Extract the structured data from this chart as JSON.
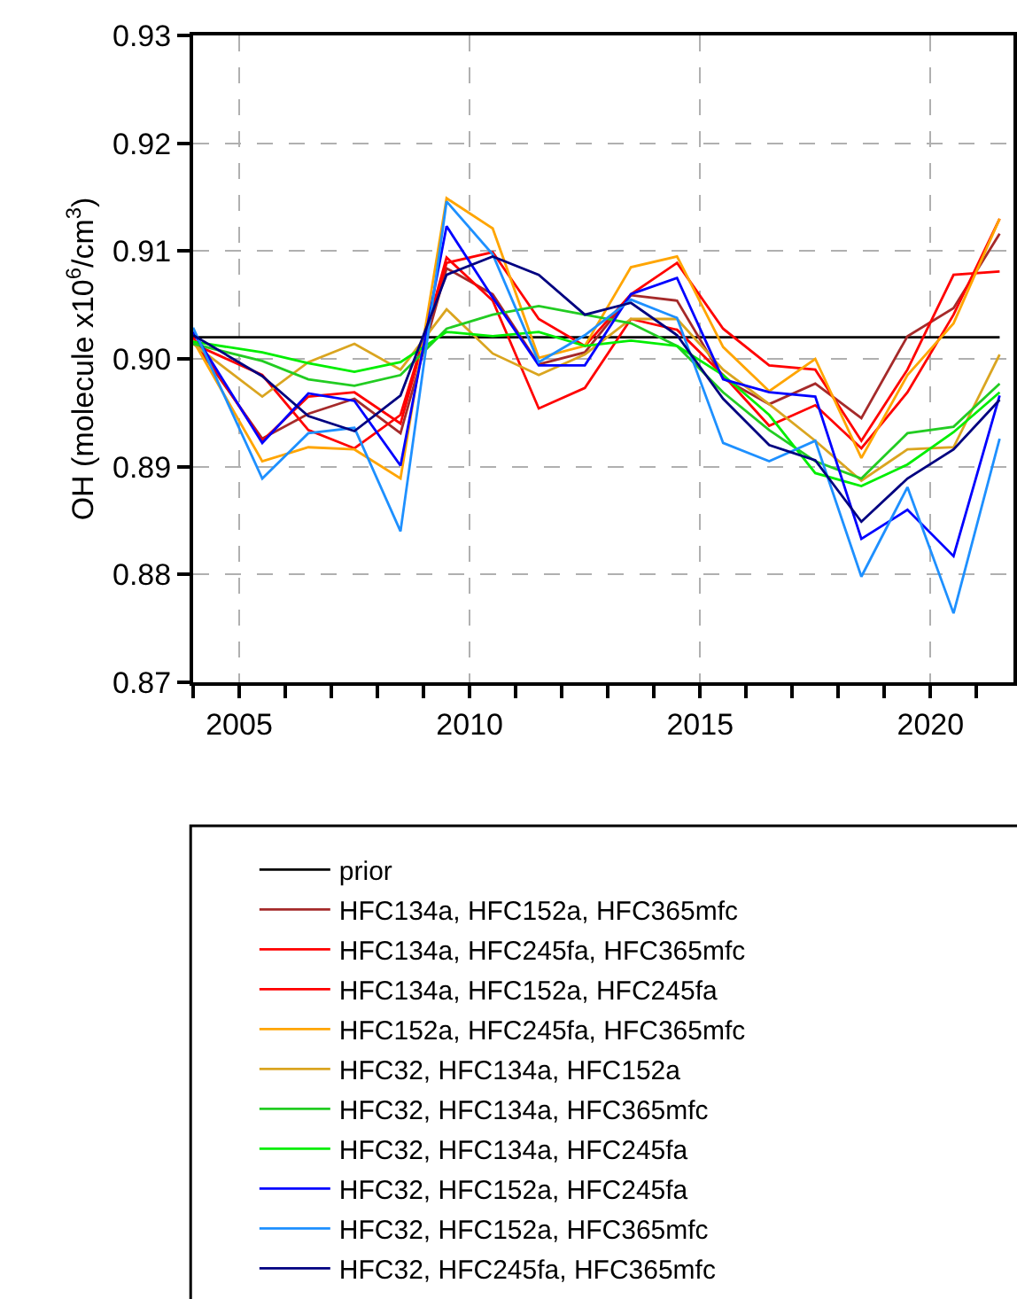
{
  "chart_data": {
    "type": "line",
    "ylabel": "OH (molecule x10$^{6}$/cm$^{3}$)",
    "x": [
      2004,
      2005.5,
      2006.5,
      2007.5,
      2008.5,
      2009.5,
      2010.5,
      2011.5,
      2012.5,
      2013.5,
      2014.5,
      2015.5,
      2016.5,
      2017.5,
      2018.5,
      2019.5,
      2020.5,
      2021.5
    ],
    "xlim": [
      2004,
      2021.8
    ],
    "xticks": [
      {
        "value": 2004,
        "label": null
      },
      2005,
      {
        "value": 2006,
        "label": null
      },
      {
        "value": 2007,
        "label": null
      },
      {
        "value": 2008,
        "label": null
      },
      {
        "value": 2009,
        "label": null
      },
      2010,
      {
        "value": 2011,
        "label": null
      },
      {
        "value": 2012,
        "label": null
      },
      {
        "value": 2013,
        "label": null
      },
      {
        "value": 2014,
        "label": null
      },
      2015,
      {
        "value": 2016,
        "label": null
      },
      {
        "value": 2017,
        "label": null
      },
      {
        "value": 2018,
        "label": null
      },
      {
        "value": 2019,
        "label": null
      },
      2020,
      {
        "value": 2021,
        "label": null
      }
    ],
    "ylim": [
      0.87,
      0.93
    ],
    "yticks": [
      {
        "value": 0.87,
        "label": "0.87"
      },
      {
        "value": 0.88,
        "label": "0.88"
      },
      {
        "value": 0.89,
        "label": "0.89"
      },
      {
        "value": 0.9,
        "label": "0.90"
      },
      {
        "value": 0.91,
        "label": "0.91"
      },
      {
        "value": 0.92,
        "label": "0.92"
      },
      {
        "value": 0.93,
        "label": "0.93"
      }
    ],
    "grid": true,
    "legend": "bottom",
    "marker": "none",
    "line_style": "solid",
    "series": [
      {
        "name": "prior",
        "color": "#000000",
        "values": [
          0.902,
          0.902,
          0.902,
          0.902,
          0.902,
          0.902,
          0.902,
          0.902,
          0.902,
          0.902,
          0.902,
          0.902,
          0.902,
          0.902,
          0.902,
          0.902,
          0.902,
          0.902
        ]
      },
      {
        "name": "HFC134a, HFC152a, HFC365mfc",
        "color": "#a52a2a",
        "values": [
          0.9017,
          0.8926,
          0.8949,
          0.8963,
          0.8931,
          0.9084,
          0.906,
          0.8995,
          0.9006,
          0.9059,
          0.9054,
          0.8982,
          0.8958,
          0.8977,
          0.8945,
          0.9021,
          0.9047,
          0.9116
        ]
      },
      {
        "name": "HFC134a, HFC245fa, HFC365mfc",
        "color": "#ff0000",
        "values": [
          0.9014,
          0.8985,
          0.8934,
          0.8917,
          0.8948,
          0.9089,
          0.9099,
          0.9037,
          0.9012,
          0.906,
          0.9089,
          0.9028,
          0.8994,
          0.899,
          0.8924,
          0.899,
          0.9078,
          0.9081
        ]
      },
      {
        "name": "HFC134a, HFC152a, HFC245fa",
        "color": "#ff0000",
        "values": [
          0.902,
          0.8924,
          0.8965,
          0.8969,
          0.894,
          0.9094,
          0.9054,
          0.8954,
          0.8973,
          0.9037,
          0.9027,
          0.8985,
          0.8938,
          0.8957,
          0.8917,
          0.8969,
          0.9041,
          0.913
        ]
      },
      {
        "name": "HFC152a, HFC245fa, HFC365mfc",
        "color": "#ffa500",
        "values": [
          0.9017,
          0.8905,
          0.8918,
          0.8916,
          0.8889,
          0.9149,
          0.9121,
          0.9001,
          0.9012,
          0.9085,
          0.9095,
          0.9011,
          0.897,
          0.9,
          0.8908,
          0.8985,
          0.9033,
          0.913
        ]
      },
      {
        "name": "HFC32, HFC134a, HFC152a",
        "color": "#daa520",
        "values": [
          0.9014,
          0.8965,
          0.8997,
          0.9014,
          0.899,
          0.9046,
          0.9005,
          0.8985,
          0.9004,
          0.9037,
          0.9037,
          0.899,
          0.8958,
          0.8924,
          0.8887,
          0.8916,
          0.8918,
          0.9004
        ]
      },
      {
        "name": "HFC32, HFC134a, HFC365mfc",
        "color": "#22cc22",
        "values": [
          0.9014,
          0.8998,
          0.8981,
          0.8975,
          0.8985,
          0.9028,
          0.9041,
          0.9049,
          0.9041,
          0.9033,
          0.9012,
          0.8969,
          0.8934,
          0.8905,
          0.8889,
          0.8931,
          0.8937,
          0.8977
        ]
      },
      {
        "name": "HFC32, HFC134a, HFC245fa",
        "color": "#00ee00",
        "values": [
          0.9016,
          0.9006,
          0.8996,
          0.8988,
          0.8997,
          0.9025,
          0.9021,
          0.9025,
          0.9012,
          0.9017,
          0.9012,
          0.8985,
          0.8948,
          0.8894,
          0.8882,
          0.8902,
          0.8932,
          0.8969
        ]
      },
      {
        "name": "HFC32, HFC152a, HFC245fa",
        "color": "#0000ff",
        "values": [
          0.9025,
          0.8922,
          0.8968,
          0.8961,
          0.8901,
          0.9123,
          0.9057,
          0.8994,
          0.8994,
          0.906,
          0.9075,
          0.8981,
          0.8969,
          0.8965,
          0.8833,
          0.886,
          0.8817,
          0.8966
        ]
      },
      {
        "name": "HFC32, HFC152a, HFC365mfc",
        "color": "#1e90ff",
        "values": [
          0.9029,
          0.8889,
          0.8931,
          0.8936,
          0.884,
          0.9146,
          0.9097,
          0.8997,
          0.9022,
          0.9055,
          0.9038,
          0.8922,
          0.8905,
          0.8924,
          0.8798,
          0.8881,
          0.8764,
          0.8926
        ]
      },
      {
        "name": "HFC32, HFC245fa, HFC365mfc",
        "color": "#000080",
        "values": [
          0.9022,
          0.8984,
          0.8947,
          0.8933,
          0.8966,
          0.9078,
          0.9095,
          0.9078,
          0.9041,
          0.9052,
          0.9022,
          0.8963,
          0.892,
          0.8906,
          0.8849,
          0.8889,
          0.8916,
          0.8962
        ]
      }
    ]
  }
}
